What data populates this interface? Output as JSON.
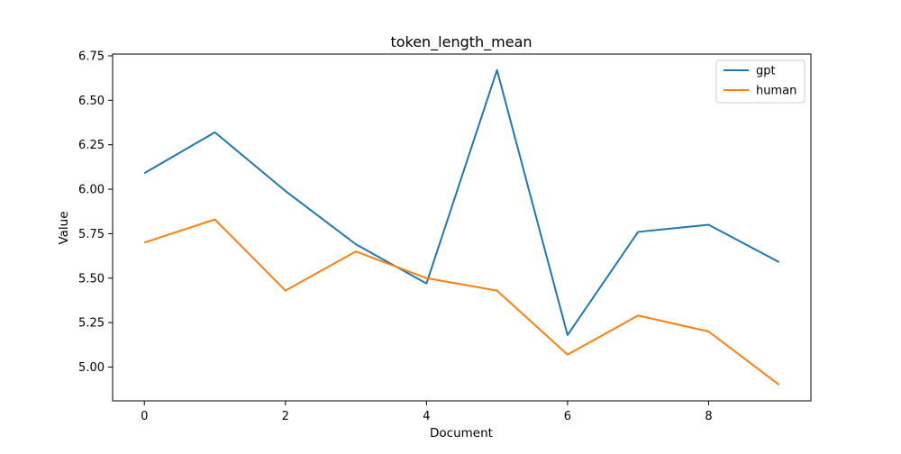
{
  "chart_data": {
    "type": "line",
    "title": "token_length_mean",
    "xlabel": "Document",
    "ylabel": "Value",
    "x": [
      0,
      1,
      2,
      3,
      4,
      5,
      6,
      7,
      8,
      9
    ],
    "xlim": [
      -0.45,
      9.45
    ],
    "ylim": [
      4.81,
      6.76
    ],
    "xticks": [
      0,
      2,
      4,
      6,
      8
    ],
    "xtick_labels": [
      "0",
      "2",
      "4",
      "6",
      "8"
    ],
    "yticks": [
      5.0,
      5.25,
      5.5,
      5.75,
      6.0,
      6.25,
      6.5,
      6.75
    ],
    "ytick_labels": [
      "5.00",
      "5.25",
      "5.50",
      "5.75",
      "6.00",
      "6.25",
      "6.50",
      "6.75"
    ],
    "grid": false,
    "legend_position": "top-right",
    "series": [
      {
        "name": "gpt",
        "color": "#1f77b4",
        "values": [
          6.09,
          6.32,
          5.99,
          5.69,
          5.47,
          6.67,
          5.18,
          5.76,
          5.8,
          5.59
        ]
      },
      {
        "name": "human",
        "color": "#ff7f0e",
        "values": [
          5.7,
          5.83,
          5.43,
          5.65,
          5.5,
          5.43,
          5.07,
          5.29,
          5.2,
          4.9
        ]
      }
    ]
  }
}
